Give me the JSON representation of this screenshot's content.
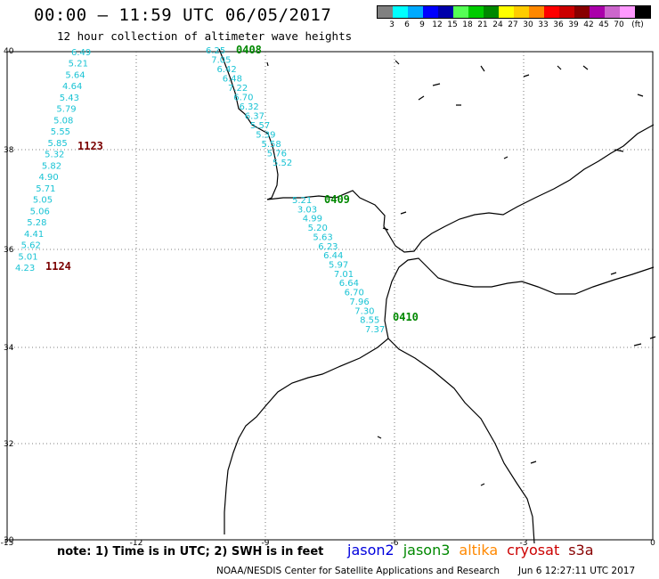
{
  "header": {
    "title": "00:00 – 11:59 UTC 06/05/2017",
    "subtitle": "12 hour collection of altimeter wave heights"
  },
  "legend": {
    "colors": [
      "#808080",
      "#00ffff",
      "#00aaff",
      "#0000ff",
      "#0000aa",
      "#55ff55",
      "#00cc00",
      "#008800",
      "#ffff00",
      "#ffcc00",
      "#ff8800",
      "#ff0000",
      "#cc0000",
      "#880000",
      "#aa00aa",
      "#cc66cc",
      "#ff99ff",
      "#000000"
    ],
    "labels": [
      "3",
      "6",
      "9",
      "12",
      "15",
      "18",
      "21",
      "24",
      "27",
      "30",
      "33",
      "36",
      "39",
      "42",
      "45",
      "70",
      "(ft)"
    ]
  },
  "map": {
    "lon_ticks": [
      "-15",
      "-12",
      "-9",
      "-6",
      "-3",
      "0"
    ],
    "lat_ticks": [
      "40",
      "38",
      "36",
      "34",
      "32",
      "30"
    ],
    "track_west": {
      "color": "#19c3d4",
      "values": [
        "6.49",
        "5.21",
        "5.64",
        "4.64",
        "5.43",
        "5.79",
        "5.08",
        "5.55",
        "5.85",
        "5.32",
        "5.82",
        "4.90",
        "5.71",
        "5.05",
        "5.06",
        "5.28",
        "4.41",
        "5.62",
        "5.01",
        "4.23"
      ]
    },
    "track_east": {
      "color": "#19c3d4",
      "values": [
        "6.25",
        "7.05",
        "6.42",
        "6.48",
        "7.22",
        "6.70",
        "6.32",
        "6.37",
        "5.57",
        "5.39",
        "5.58",
        "5.76",
        "5.52",
        "5.21",
        "3.03",
        "4.99",
        "5.20",
        "5.63",
        "6.23",
        "6.44",
        "5.97",
        "7.01",
        "6.64",
        "6.70",
        "7.96",
        "7.30",
        "8.55",
        "7.37"
      ]
    },
    "pass_labels": [
      {
        "text": "1123",
        "color": "#7a0000"
      },
      {
        "text": "1124",
        "color": "#7a0000"
      },
      {
        "text": "0408",
        "color": "#008800"
      },
      {
        "text": "0409",
        "color": "#008800"
      },
      {
        "text": "0410",
        "color": "#008800"
      }
    ]
  },
  "footer": {
    "note": "note: 1) Time is in UTC; 2) SWH is in feet",
    "satellites": [
      {
        "name": "jason2",
        "color": "#0000dd"
      },
      {
        "name": "jason3",
        "color": "#008800"
      },
      {
        "name": "altika",
        "color": "#ff8800"
      },
      {
        "name": "cryosat",
        "color": "#cc0000"
      },
      {
        "name": "s3a",
        "color": "#880000"
      }
    ],
    "org": "NOAA/NESDIS Center for Satellite Applications and Research",
    "timestamp": "Jun  6 12:27:11 UTC 2017"
  }
}
